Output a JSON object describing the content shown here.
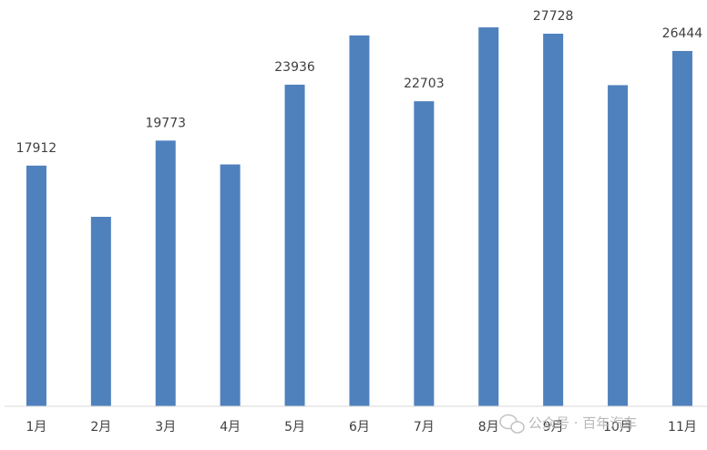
{
  "chart_data": {
    "type": "bar",
    "categories": [
      "1月",
      "2月",
      "3月",
      "4月",
      "5月",
      "6月",
      "7月",
      "8月",
      "9月",
      "10月",
      "11月"
    ],
    "values": [
      17912,
      14100,
      19773,
      18000,
      23936,
      27600,
      22703,
      28200,
      27728,
      23900,
      26444
    ],
    "value_labels": [
      "17912",
      null,
      "19773",
      null,
      "23936",
      null,
      "22703",
      null,
      "27728",
      null,
      "26444"
    ],
    "color": "#4f81bd",
    "ylim": [
      0,
      30000
    ],
    "watermark": "公众号 · 百年汽车"
  }
}
